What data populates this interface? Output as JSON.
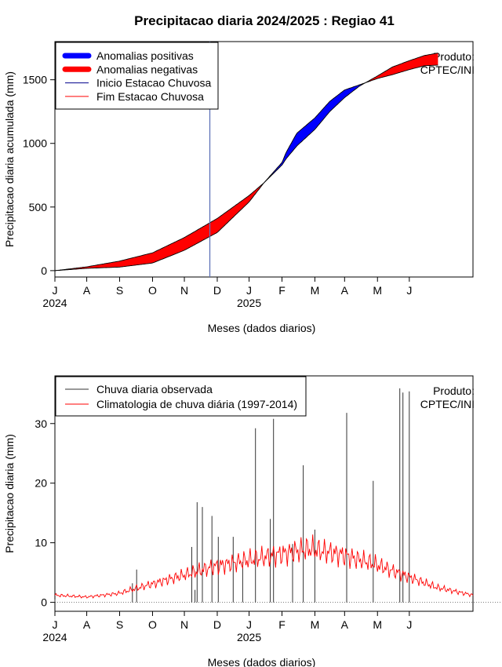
{
  "title": "Precipitacao diaria 2024/2025 : Regiao 41",
  "chart_data": [
    {
      "type": "area",
      "ylabel": "Precipitacao diaria acumulada (mm)",
      "xlabel": "Meses (dados diarios)",
      "x_range": [
        "2024-06-01",
        "2025-06-30"
      ],
      "ylim": [
        -50,
        1800
      ],
      "yticks": [
        0,
        500,
        1000,
        1500
      ],
      "ytick_labels": [
        "0",
        "500",
        "1000",
        "1500"
      ],
      "month_ticks": [
        {
          "date": "2024-06-01",
          "label": "J"
        },
        {
          "date": "2024-07-01",
          "label": "A"
        },
        {
          "date": "2024-08-01",
          "label": "S"
        },
        {
          "date": "2024-09-01",
          "label": "O"
        },
        {
          "date": "2024-10-01",
          "label": "N"
        },
        {
          "date": "2024-11-01",
          "label": "D"
        },
        {
          "date": "2024-12-01",
          "label": "J"
        },
        {
          "date": "2025-01-01",
          "label": "F"
        },
        {
          "date": "2025-02-01",
          "label": "M"
        },
        {
          "date": "2025-03-01",
          "label": "A"
        },
        {
          "date": "2025-04-01",
          "label": "M"
        },
        {
          "date": "2025-05-01",
          "label": "J"
        }
      ],
      "year_labels": [
        {
          "date": "2024-06-01",
          "label": "2024"
        },
        {
          "date": "2024-12-01",
          "label": "2025"
        }
      ],
      "legend": {
        "position": "top-left",
        "entries": [
          {
            "label": "Anomalias positivas",
            "color": "#0000ff",
            "style": "thick"
          },
          {
            "label": "Anomalias negativas",
            "color": "#ff0000",
            "style": "thick"
          },
          {
            "label": "Inicio Estacao Chuvosa",
            "color": "#00008b",
            "style": "thin"
          },
          {
            "label": "Fim Estacao Chuvosa",
            "color": "#ff0000",
            "style": "thin"
          }
        ]
      },
      "annotation": [
        "Produto:",
        "CPTEC/INI"
      ],
      "rainy_season_start": "2024-10-25",
      "series": [
        {
          "name": "Observada",
          "x": [
            "2024-06-01",
            "2024-07-01",
            "2024-08-01",
            "2024-09-01",
            "2024-10-01",
            "2024-11-01",
            "2024-12-01",
            "2024-12-15",
            "2025-01-01",
            "2025-01-05",
            "2025-01-15",
            "2025-02-01",
            "2025-02-15",
            "2025-03-01",
            "2025-03-15",
            "2025-04-01",
            "2025-04-15",
            "2025-05-01",
            "2025-05-15",
            "2025-05-28"
          ],
          "values": [
            0,
            18,
            28,
            60,
            160,
            300,
            540,
            690,
            850,
            930,
            1080,
            1200,
            1330,
            1420,
            1460,
            1510,
            1540,
            1580,
            1610,
            1615
          ]
        },
        {
          "name": "Climatologia",
          "x": [
            "2024-06-01",
            "2024-07-01",
            "2024-08-01",
            "2024-09-01",
            "2024-10-01",
            "2024-11-01",
            "2024-12-01",
            "2024-12-15",
            "2025-01-01",
            "2025-01-05",
            "2025-01-15",
            "2025-02-01",
            "2025-02-15",
            "2025-03-01",
            "2025-03-15",
            "2025-04-01",
            "2025-04-15",
            "2025-05-01",
            "2025-05-15",
            "2025-05-28"
          ],
          "values": [
            0,
            30,
            75,
            140,
            260,
            410,
            590,
            690,
            830,
            880,
            980,
            1110,
            1250,
            1360,
            1450,
            1530,
            1600,
            1650,
            1690,
            1710
          ]
        }
      ]
    },
    {
      "type": "bar",
      "ylabel": "Precipitacao diaria (mm)",
      "xlabel": "Meses (dados diarios)",
      "x_range": [
        "2024-06-01",
        "2025-06-30"
      ],
      "ylim": [
        -1.5,
        38
      ],
      "yticks": [
        0,
        10,
        20,
        30
      ],
      "ytick_labels": [
        "0",
        "10",
        "20",
        "30"
      ],
      "month_ticks": [
        {
          "date": "2024-06-01",
          "label": "J"
        },
        {
          "date": "2024-07-01",
          "label": "A"
        },
        {
          "date": "2024-08-01",
          "label": "S"
        },
        {
          "date": "2024-09-01",
          "label": "O"
        },
        {
          "date": "2024-10-01",
          "label": "N"
        },
        {
          "date": "2024-11-01",
          "label": "D"
        },
        {
          "date": "2024-12-01",
          "label": "J"
        },
        {
          "date": "2025-01-01",
          "label": "F"
        },
        {
          "date": "2025-02-01",
          "label": "M"
        },
        {
          "date": "2025-03-01",
          "label": "A"
        },
        {
          "date": "2025-04-01",
          "label": "M"
        },
        {
          "date": "2025-05-01",
          "label": "J"
        }
      ],
      "year_labels": [
        {
          "date": "2024-06-01",
          "label": "2024"
        },
        {
          "date": "2024-12-01",
          "label": "2025"
        }
      ],
      "legend": {
        "position": "top-left",
        "entries": [
          {
            "label": "Chuva diaria observada",
            "color": "#333333"
          },
          {
            "label": "Climatologia de chuva diária (1997-2014)",
            "color": "#ff0000"
          }
        ]
      },
      "annotation": [
        "Produto:",
        "CPTEC/INI"
      ],
      "observed_start": "2024-06-01",
      "observed_daily": [
        0.5,
        0,
        0,
        0,
        0,
        0,
        0,
        0,
        0,
        0,
        0,
        0,
        0,
        0,
        0,
        0,
        0,
        0,
        0,
        0,
        0,
        0,
        0,
        0,
        0,
        0,
        0,
        0,
        0,
        0,
        0,
        0,
        0,
        0,
        0,
        0,
        0,
        0,
        0,
        0,
        0,
        0,
        0,
        0,
        0,
        0,
        0,
        0,
        0,
        0,
        0,
        0,
        0,
        0,
        0,
        0,
        0,
        0,
        0,
        0,
        0,
        0,
        0,
        0,
        0,
        0,
        0,
        0,
        0,
        0,
        0,
        0,
        0,
        3.2,
        0,
        0,
        0,
        5.5,
        0,
        0,
        0,
        0,
        0,
        0,
        0,
        0,
        0,
        0,
        0,
        0,
        0,
        0,
        0,
        0,
        0,
        0,
        0,
        0,
        0,
        0,
        0,
        0,
        0,
        0,
        0,
        0,
        0,
        0,
        0,
        0,
        0,
        0,
        0,
        0,
        0,
        0,
        0,
        0,
        0,
        0,
        0,
        0,
        0,
        0,
        0,
        0,
        0,
        0,
        0,
        9.3,
        0,
        0,
        2.1,
        0,
        16.8,
        0,
        0,
        0,
        0,
        16,
        0,
        0,
        0,
        0,
        0,
        0,
        0,
        0,
        14.5,
        0,
        0,
        0,
        0,
        0,
        11,
        0,
        0,
        0,
        0,
        0,
        0,
        0,
        0,
        0,
        0,
        0,
        0,
        0,
        11,
        0,
        0,
        0,
        0,
        0,
        0,
        0,
        0,
        6.8,
        0,
        0,
        0,
        0,
        0,
        0,
        0,
        0,
        0,
        0,
        0,
        29.2,
        0,
        0,
        0,
        0,
        0,
        0,
        0,
        0,
        0,
        0,
        0,
        0,
        0,
        14,
        0,
        0,
        30.8,
        0,
        0,
        0,
        0,
        0,
        0,
        0,
        0,
        0,
        0,
        0,
        0,
        0,
        0,
        0,
        0,
        0,
        9.8,
        0,
        0,
        0,
        0,
        0,
        0,
        0,
        0,
        0,
        23,
        0,
        0,
        0,
        0,
        0,
        0,
        0,
        0,
        0,
        0,
        12.2,
        0,
        0,
        0,
        0,
        0,
        0,
        0,
        0,
        0,
        0,
        0,
        0,
        0,
        0,
        0,
        0,
        0,
        0,
        0,
        0,
        0,
        0,
        0,
        0,
        0,
        0,
        0,
        0,
        0,
        31.8,
        0,
        0,
        0,
        0,
        0,
        0,
        0,
        0,
        0,
        0,
        0,
        0,
        0,
        0,
        0,
        0,
        0,
        0,
        0,
        0,
        0,
        0,
        0,
        0,
        20.4,
        0,
        0,
        0,
        0,
        0,
        0,
        0,
        0,
        0,
        0,
        0,
        0,
        0,
        0,
        0,
        0,
        0,
        0,
        0,
        0,
        0,
        0,
        0,
        0,
        35.9,
        0,
        0,
        35.2,
        0,
        0,
        0,
        0,
        0,
        35.4,
        0,
        0,
        0,
        0,
        0,
        0,
        0,
        0,
        0,
        0,
        0,
        0,
        0,
        0,
        0,
        0,
        0,
        0,
        0,
        0,
        0,
        0,
        0,
        0,
        0,
        0,
        0,
        0,
        0,
        0,
        0,
        0,
        0,
        0,
        0,
        0,
        0,
        0,
        0,
        0,
        0,
        0,
        0,
        0,
        0,
        0,
        0,
        0,
        0,
        0,
        0,
        0,
        0,
        0,
        0,
        0,
        0,
        0,
        0,
        0,
        0,
        0,
        0,
        0,
        0,
        0,
        0,
        0,
        0,
        0,
        0,
        0,
        0,
        0,
        0,
        0,
        0,
        0,
        0,
        0,
        0,
        0,
        0,
        0,
        0,
        0,
        0,
        0,
        0,
        0,
        0,
        0,
        0,
        0,
        0,
        0
      ],
      "climatology_days": [
        0,
        30,
        60,
        90,
        120,
        150,
        180,
        210,
        240,
        270,
        300,
        330,
        360,
        394
      ],
      "climatology_values": [
        1.2,
        0.9,
        1.5,
        3.0,
        4.5,
        6.0,
        7.0,
        8.0,
        9.0,
        8.0,
        6.5,
        4.5,
        2.5,
        1.2
      ]
    }
  ]
}
